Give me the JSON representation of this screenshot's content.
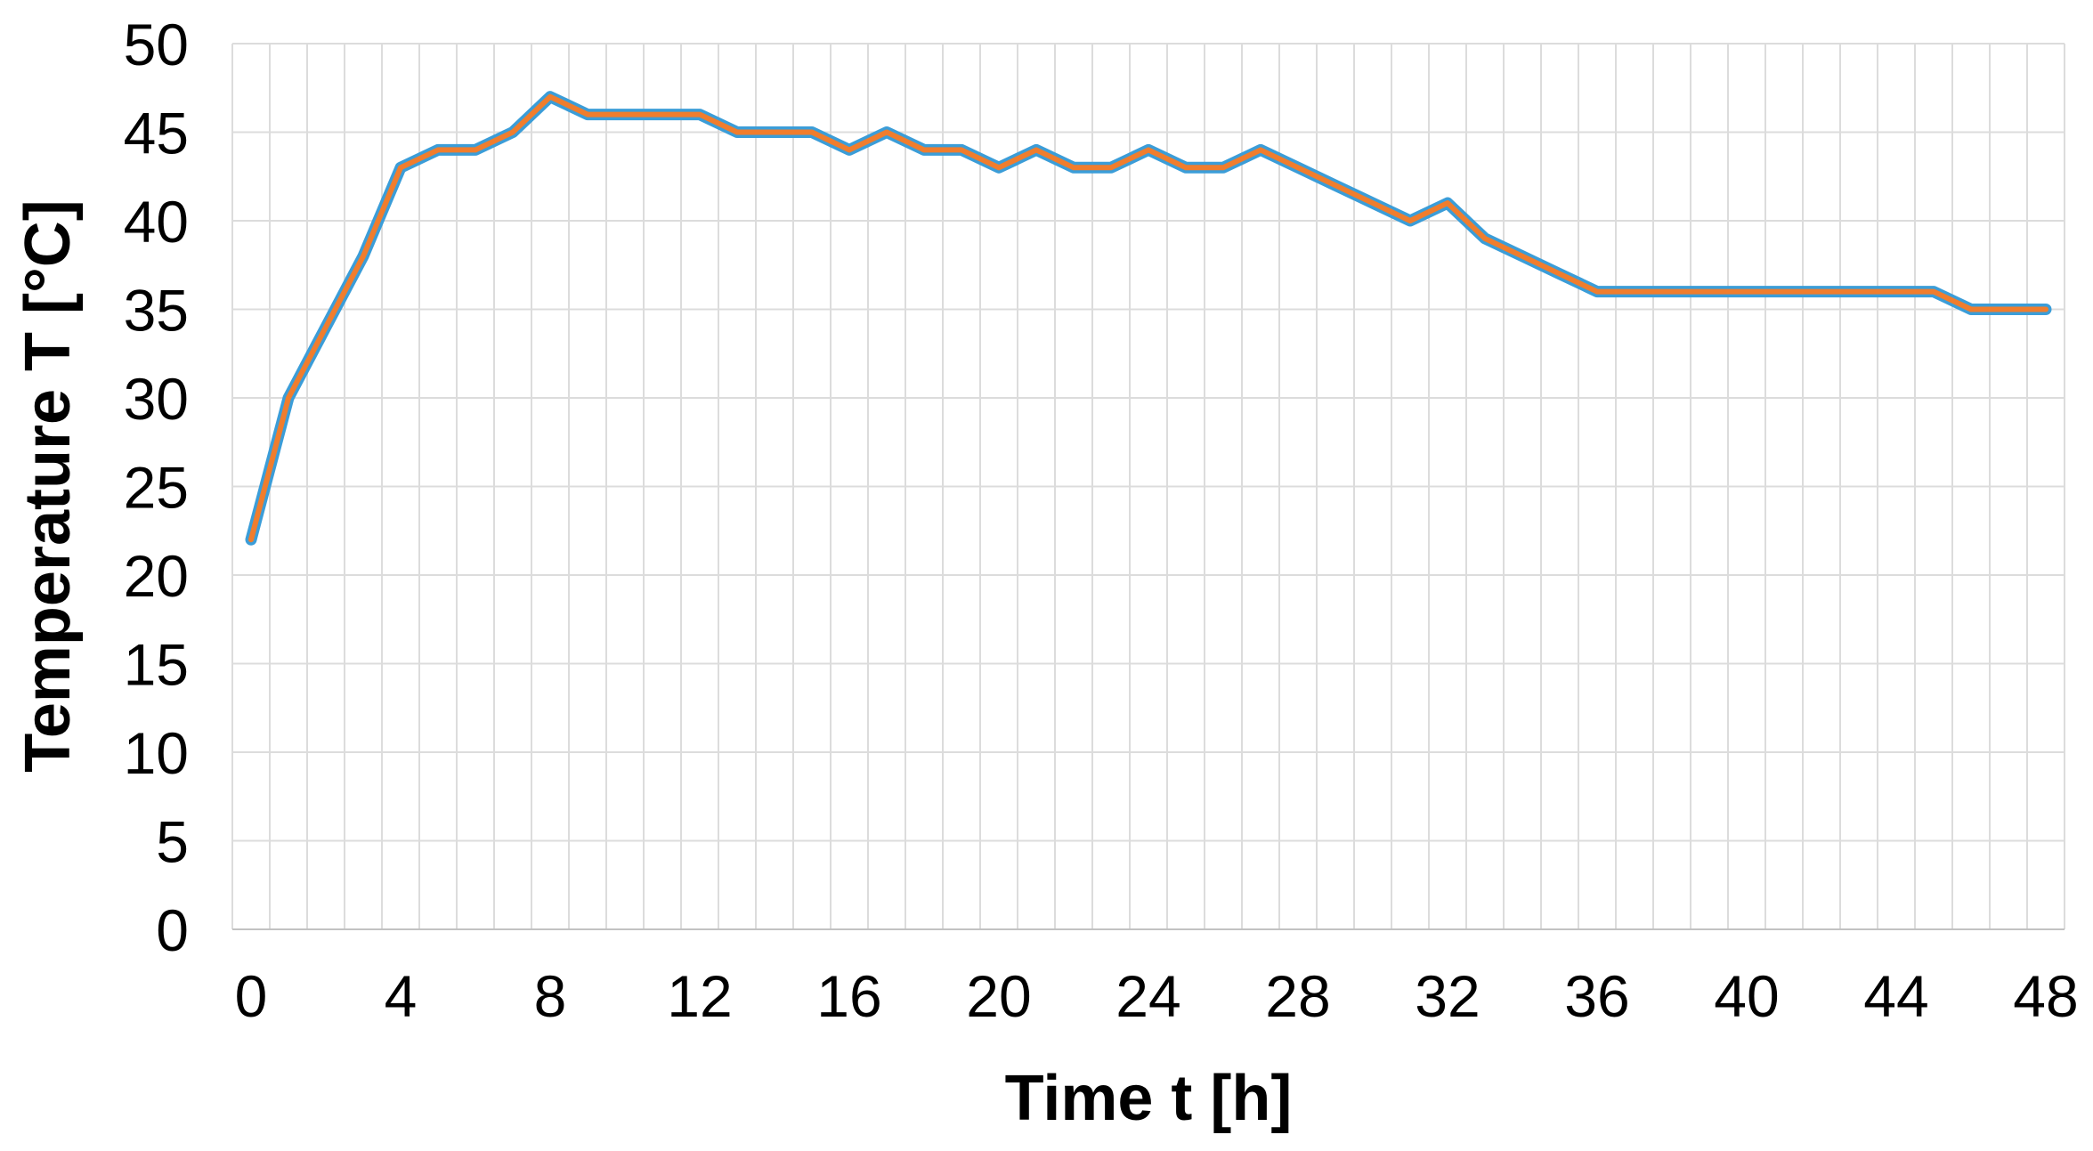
{
  "figure": {
    "background": "#FFFFFF"
  },
  "chart_data": {
    "type": "line",
    "title": "",
    "xlabel": "Time t [h]",
    "ylabel": "Temperature T [°C]",
    "x": [
      0,
      1,
      2,
      3,
      4,
      5,
      6,
      7,
      8,
      9,
      10,
      11,
      12,
      13,
      14,
      15,
      16,
      17,
      18,
      19,
      20,
      21,
      22,
      23,
      24,
      25,
      26,
      27,
      28,
      29,
      30,
      31,
      32,
      33,
      34,
      35,
      36,
      37,
      38,
      39,
      40,
      41,
      42,
      43,
      44,
      45,
      46,
      47,
      48
    ],
    "values": [
      22,
      30,
      34,
      38,
      43,
      44,
      44,
      45,
      47,
      46,
      46,
      46,
      46,
      45,
      45,
      45,
      44,
      45,
      44,
      44,
      43,
      44,
      43,
      43,
      44,
      43,
      43,
      44,
      43,
      42,
      41,
      40,
      41,
      39,
      38,
      37,
      36,
      36,
      36,
      36,
      36,
      36,
      36,
      36,
      36,
      36,
      35,
      35,
      35
    ],
    "series": [
      {
        "name": "temperature-outer-stroke",
        "color": "#3B9DD8",
        "stroke_width": 13
      },
      {
        "name": "temperature-inner-stroke",
        "color": "#F07D2D",
        "stroke_width": 6
      }
    ],
    "x_axis": {
      "min": 0,
      "max": 48,
      "ticks": [
        0,
        4,
        8,
        12,
        16,
        20,
        24,
        28,
        32,
        36,
        40,
        44,
        48
      ],
      "minor_grid_step_hours": 1
    },
    "y_axis": {
      "min": 0,
      "max": 50,
      "ticks": [
        0,
        5,
        10,
        15,
        20,
        25,
        30,
        35,
        40,
        45,
        50
      ]
    },
    "grid": {
      "show": true,
      "color": "#DCDCDC",
      "axis_line_color": "#C2C2C2"
    },
    "legend": {
      "show": false
    },
    "text_color": "#000000"
  }
}
